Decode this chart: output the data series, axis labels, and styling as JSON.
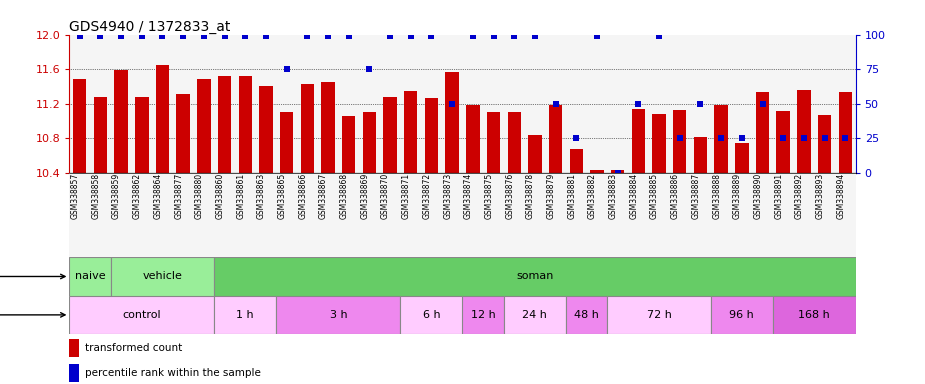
{
  "title": "GDS4940 / 1372833_at",
  "samples": [
    "GSM338857",
    "GSM338858",
    "GSM338859",
    "GSM338862",
    "GSM338864",
    "GSM338877",
    "GSM338880",
    "GSM338860",
    "GSM338861",
    "GSM338863",
    "GSM338865",
    "GSM338866",
    "GSM338867",
    "GSM338868",
    "GSM338869",
    "GSM338870",
    "GSM338871",
    "GSM338872",
    "GSM338873",
    "GSM338874",
    "GSM338875",
    "GSM338876",
    "GSM338878",
    "GSM338879",
    "GSM338881",
    "GSM338882",
    "GSM338883",
    "GSM338884",
    "GSM338885",
    "GSM338886",
    "GSM338887",
    "GSM338888",
    "GSM338889",
    "GSM338890",
    "GSM338891",
    "GSM338892",
    "GSM338893",
    "GSM338894"
  ],
  "bar_values": [
    11.49,
    11.28,
    11.59,
    11.28,
    11.65,
    11.31,
    11.49,
    11.52,
    11.52,
    11.4,
    11.1,
    11.43,
    11.45,
    11.06,
    11.1,
    11.28,
    11.35,
    11.27,
    11.57,
    11.18,
    11.1,
    11.1,
    10.84,
    11.19,
    10.67,
    10.43,
    10.43,
    11.14,
    11.08,
    11.13,
    10.82,
    11.18,
    10.74,
    11.33,
    11.12,
    11.36,
    11.07,
    11.34
  ],
  "percentile_values": [
    99,
    99,
    99,
    99,
    99,
    99,
    99,
    99,
    99,
    99,
    75,
    99,
    99,
    99,
    75,
    99,
    99,
    99,
    50,
    99,
    99,
    99,
    99,
    50,
    25,
    99,
    0,
    50,
    99,
    25,
    50,
    25,
    25,
    50,
    25,
    25,
    25,
    25
  ],
  "ylim_left": [
    10.4,
    12.0
  ],
  "ylim_right": [
    0,
    100
  ],
  "bar_color": "#cc0000",
  "dot_color": "#0000cc",
  "yticks_left": [
    10.4,
    10.8,
    11.2,
    11.6,
    12.0
  ],
  "yticks_right": [
    0,
    25,
    50,
    75,
    100
  ],
  "gridlines": [
    10.8,
    11.2,
    11.6
  ],
  "agent_groups": [
    {
      "label": "naive",
      "start": 0,
      "end": 2,
      "color": "#99ee99"
    },
    {
      "label": "vehicle",
      "start": 2,
      "end": 7,
      "color": "#99ee99"
    },
    {
      "label": "soman",
      "start": 7,
      "end": 38,
      "color": "#66cc66"
    }
  ],
  "time_groups": [
    {
      "label": "control",
      "start": 0,
      "end": 7,
      "color": "#ffccff"
    },
    {
      "label": "1 h",
      "start": 7,
      "end": 10,
      "color": "#ffccff"
    },
    {
      "label": "3 h",
      "start": 10,
      "end": 16,
      "color": "#ee88ee"
    },
    {
      "label": "6 h",
      "start": 16,
      "end": 19,
      "color": "#ffccff"
    },
    {
      "label": "12 h",
      "start": 19,
      "end": 21,
      "color": "#ee88ee"
    },
    {
      "label": "24 h",
      "start": 21,
      "end": 24,
      "color": "#ffccff"
    },
    {
      "label": "48 h",
      "start": 24,
      "end": 26,
      "color": "#ee88ee"
    },
    {
      "label": "72 h",
      "start": 26,
      "end": 31,
      "color": "#ffccff"
    },
    {
      "label": "96 h",
      "start": 31,
      "end": 34,
      "color": "#ee88ee"
    },
    {
      "label": "168 h",
      "start": 34,
      "end": 38,
      "color": "#dd66dd"
    }
  ],
  "title_fontsize": 10,
  "axis_color_left": "#cc0000",
  "axis_color_right": "#0000cc",
  "bg_color": "#f5f5f5"
}
